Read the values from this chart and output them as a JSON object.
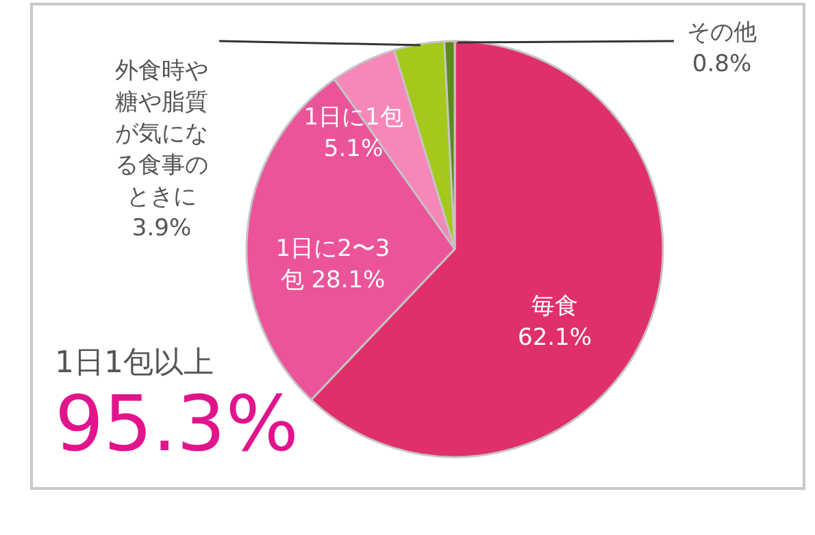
{
  "chart_data": {
    "type": "pie",
    "categories": [
      "毎食",
      "1日に2〜3包",
      "1日に1包",
      "外食時や糖や脂質が気になる食事のときに",
      "その他"
    ],
    "values": [
      62.1,
      28.1,
      5.1,
      3.9,
      0.8
    ],
    "value_labels": [
      "62.1%",
      "28.1%",
      "5.1%",
      "3.9%",
      "0.8%"
    ],
    "colors": [
      "#e0306a",
      "#ec5499",
      "#f687b8",
      "#a4c81c",
      "#5a8a1a"
    ],
    "annotations": [
      "1日1包以上",
      "95.3%"
    ]
  }
}
